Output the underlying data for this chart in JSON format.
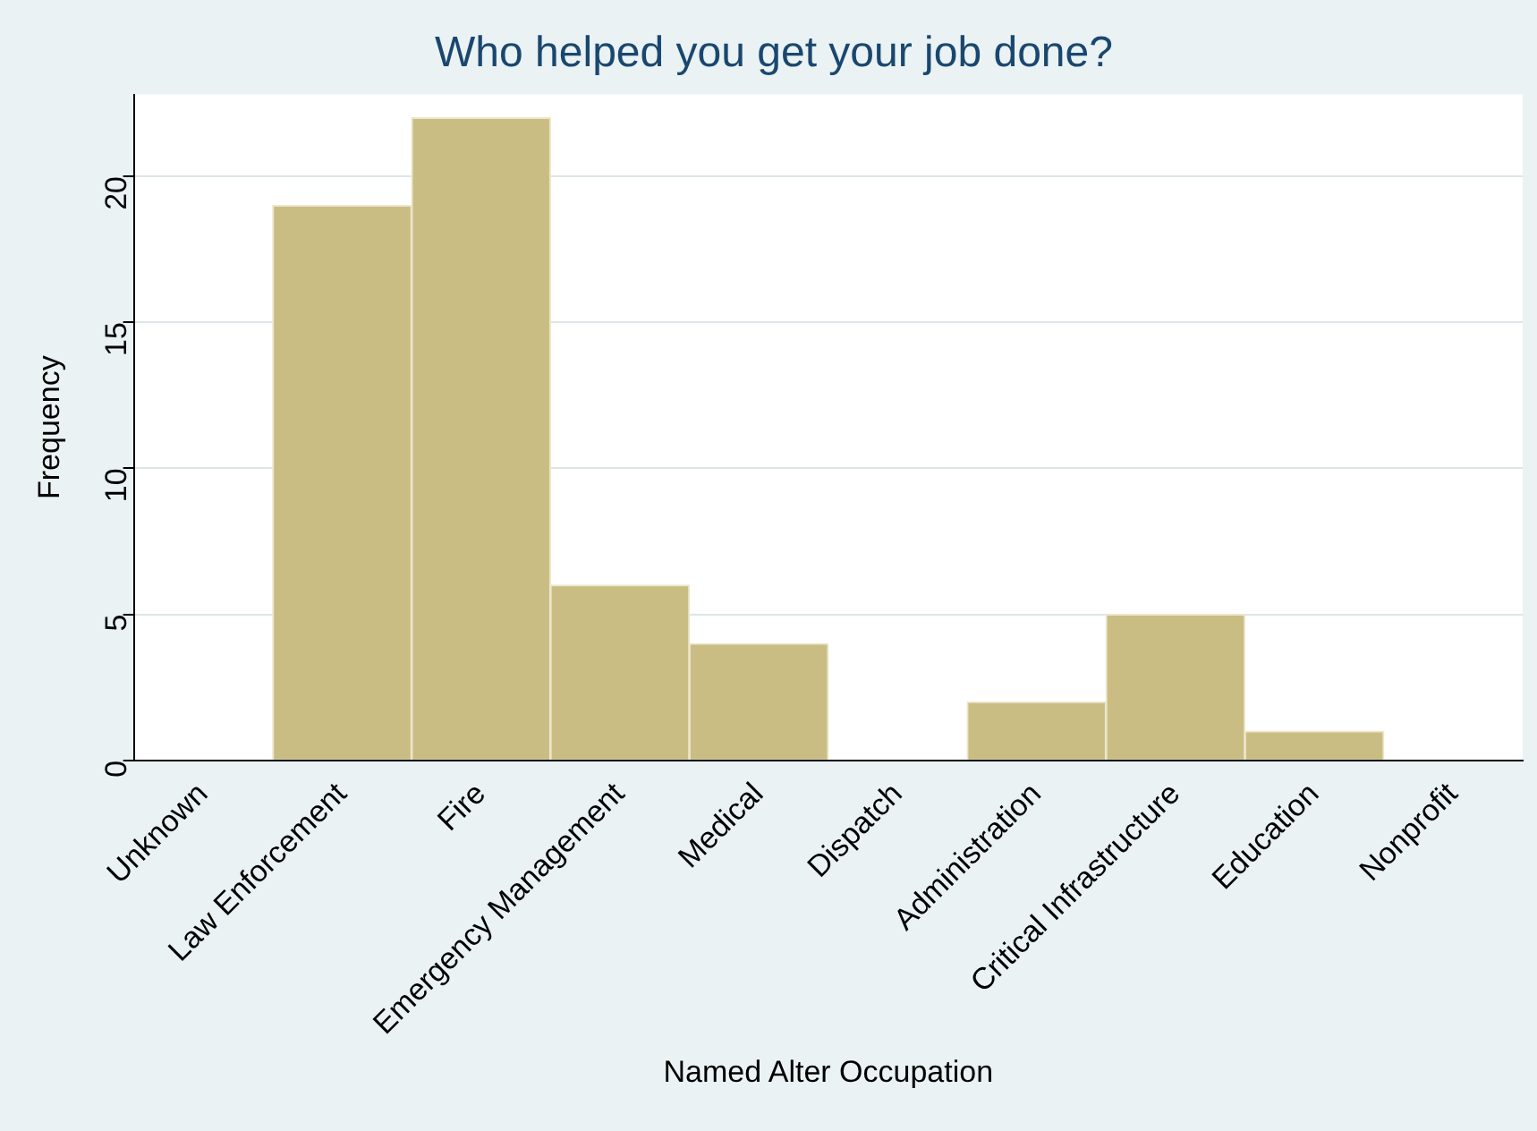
{
  "chart_data": {
    "type": "bar",
    "title": "Who helped you get your job done?",
    "xlabel": "Named Alter Occupation",
    "ylabel": "Frequency",
    "categories": [
      "Unknown",
      "Law Enforcement",
      "Fire",
      "Emergency Management",
      "Medical",
      "Dispatch",
      "Administration",
      "Critical Infrastructure",
      "Education",
      "Nonprofit"
    ],
    "values": [
      0,
      19,
      22,
      6,
      4,
      0,
      2,
      5,
      1,
      0
    ],
    "color": "#c9bd83",
    "ylim": [
      0,
      22.8
    ],
    "yticks": [
      0,
      5,
      10,
      15,
      20
    ],
    "grid": "y",
    "legend": false
  }
}
